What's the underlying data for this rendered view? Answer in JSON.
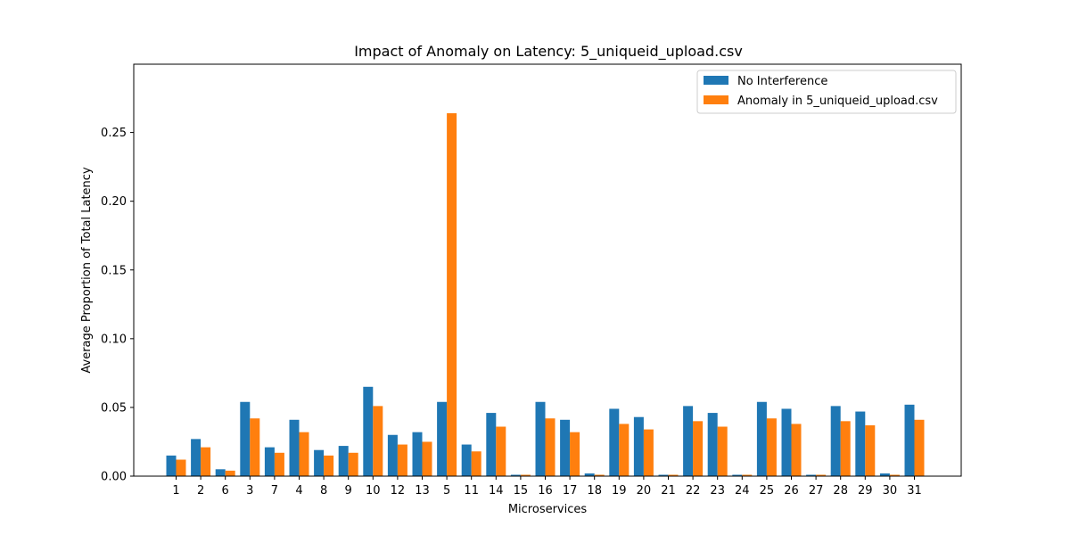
{
  "chart_data": {
    "type": "bar",
    "title": "Impact of Anomaly on Latency: 5_uniqueid_upload.csv",
    "xlabel": "Microservices",
    "ylabel": "Average Proportion of Total Latency",
    "categories": [
      "1",
      "2",
      "6",
      "3",
      "7",
      "4",
      "8",
      "9",
      "10",
      "12",
      "13",
      "5",
      "11",
      "14",
      "15",
      "16",
      "17",
      "18",
      "19",
      "20",
      "21",
      "22",
      "23",
      "24",
      "25",
      "26",
      "27",
      "28",
      "29",
      "30",
      "31"
    ],
    "series": [
      {
        "name": "No Interference",
        "color": "#1f77b4",
        "values": [
          0.015,
          0.027,
          0.005,
          0.054,
          0.021,
          0.041,
          0.019,
          0.022,
          0.065,
          0.03,
          0.032,
          0.054,
          0.023,
          0.046,
          0.001,
          0.054,
          0.041,
          0.002,
          0.049,
          0.043,
          0.001,
          0.051,
          0.046,
          0.001,
          0.054,
          0.049,
          0.001,
          0.051,
          0.047,
          0.002,
          0.052
        ]
      },
      {
        "name": "Anomaly in 5_uniqueid_upload.csv",
        "color": "#ff7f0e",
        "values": [
          0.012,
          0.021,
          0.004,
          0.042,
          0.017,
          0.032,
          0.015,
          0.017,
          0.051,
          0.023,
          0.025,
          0.264,
          0.018,
          0.036,
          0.001,
          0.042,
          0.032,
          0.001,
          0.038,
          0.034,
          0.001,
          0.04,
          0.036,
          0.001,
          0.042,
          0.038,
          0.001,
          0.04,
          0.037,
          0.001,
          0.041
        ]
      }
    ],
    "ylim": [
      0,
      0.3
    ],
    "yticks": [
      "0.00",
      "0.05",
      "0.10",
      "0.15",
      "0.20",
      "0.25"
    ],
    "legend": "top-right",
    "grid": false
  }
}
